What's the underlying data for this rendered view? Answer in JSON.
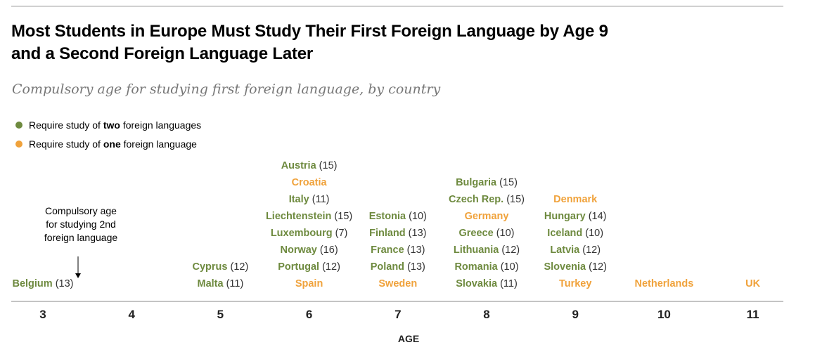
{
  "title_lines": [
    "Most Students in Europe Must Study Their First Foreign Language by Age 9",
    "and a Second Foreign Language Later"
  ],
  "subtitle": "Compulsory age for studying first foreign language, by country",
  "legend": [
    {
      "before": "Require study of ",
      "bold": "two",
      "after": " foreign languages",
      "color": "#6e8a3f"
    },
    {
      "before": "Require study of ",
      "bold": "one",
      "after": " foreign language",
      "color": "#f0a23b"
    }
  ],
  "annotation": {
    "lines": [
      "Compulsory age",
      "for studying 2nd",
      "foreign language"
    ],
    "arrow": "↓"
  },
  "colors": {
    "two": "#6e8a3f",
    "one": "#f0a23b",
    "axis": "#b0b0b0",
    "paren": "#333333"
  },
  "chart_data": {
    "type": "table",
    "xlabel": "AGE",
    "x_ticks": [
      3,
      4,
      5,
      6,
      7,
      8,
      9,
      10,
      11
    ],
    "columns": [
      {
        "age": 3,
        "countries": [
          {
            "name": "Belgium",
            "second_age": 13,
            "group": "two"
          }
        ]
      },
      {
        "age": 4,
        "countries": []
      },
      {
        "age": 5,
        "countries": [
          {
            "name": "Cyprus",
            "second_age": 12,
            "group": "two"
          },
          {
            "name": "Malta",
            "second_age": 11,
            "group": "two"
          }
        ]
      },
      {
        "age": 6,
        "countries": [
          {
            "name": "Austria",
            "second_age": 15,
            "group": "two"
          },
          {
            "name": "Croatia",
            "second_age": null,
            "group": "one"
          },
          {
            "name": "Italy",
            "second_age": 11,
            "group": "two"
          },
          {
            "name": "Liechtenstein",
            "second_age": 15,
            "group": "two"
          },
          {
            "name": "Luxembourg",
            "second_age": 7,
            "group": "two"
          },
          {
            "name": "Norway",
            "second_age": 16,
            "group": "two"
          },
          {
            "name": "Portugal",
            "second_age": 12,
            "group": "two"
          },
          {
            "name": "Spain",
            "second_age": null,
            "group": "one"
          }
        ]
      },
      {
        "age": 7,
        "countries": [
          {
            "name": "Estonia",
            "second_age": 10,
            "group": "two"
          },
          {
            "name": "Finland",
            "second_age": 13,
            "group": "two"
          },
          {
            "name": "France",
            "second_age": 13,
            "group": "two"
          },
          {
            "name": "Poland",
            "second_age": 13,
            "group": "two"
          },
          {
            "name": "Sweden",
            "second_age": null,
            "group": "one"
          }
        ]
      },
      {
        "age": 8,
        "countries": [
          {
            "name": "Bulgaria",
            "second_age": 15,
            "group": "two"
          },
          {
            "name": "Czech Rep.",
            "second_age": 15,
            "group": "two"
          },
          {
            "name": "Germany",
            "second_age": null,
            "group": "one"
          },
          {
            "name": "Greece",
            "second_age": 10,
            "group": "two"
          },
          {
            "name": "Lithuania",
            "second_age": 12,
            "group": "two"
          },
          {
            "name": "Romania",
            "second_age": 10,
            "group": "two"
          },
          {
            "name": "Slovakia",
            "second_age": 11,
            "group": "two"
          }
        ]
      },
      {
        "age": 9,
        "countries": [
          {
            "name": "Denmark",
            "second_age": null,
            "group": "one"
          },
          {
            "name": "Hungary",
            "second_age": 14,
            "group": "two"
          },
          {
            "name": "Iceland",
            "second_age": 10,
            "group": "two"
          },
          {
            "name": "Latvia",
            "second_age": 12,
            "group": "two"
          },
          {
            "name": "Slovenia",
            "second_age": 12,
            "group": "two"
          },
          {
            "name": "Turkey",
            "second_age": null,
            "group": "one"
          }
        ]
      },
      {
        "age": 10,
        "countries": [
          {
            "name": "Netherlands",
            "second_age": null,
            "group": "one"
          }
        ]
      },
      {
        "age": 11,
        "countries": [
          {
            "name": "UK",
            "second_age": null,
            "group": "one"
          }
        ]
      }
    ]
  }
}
